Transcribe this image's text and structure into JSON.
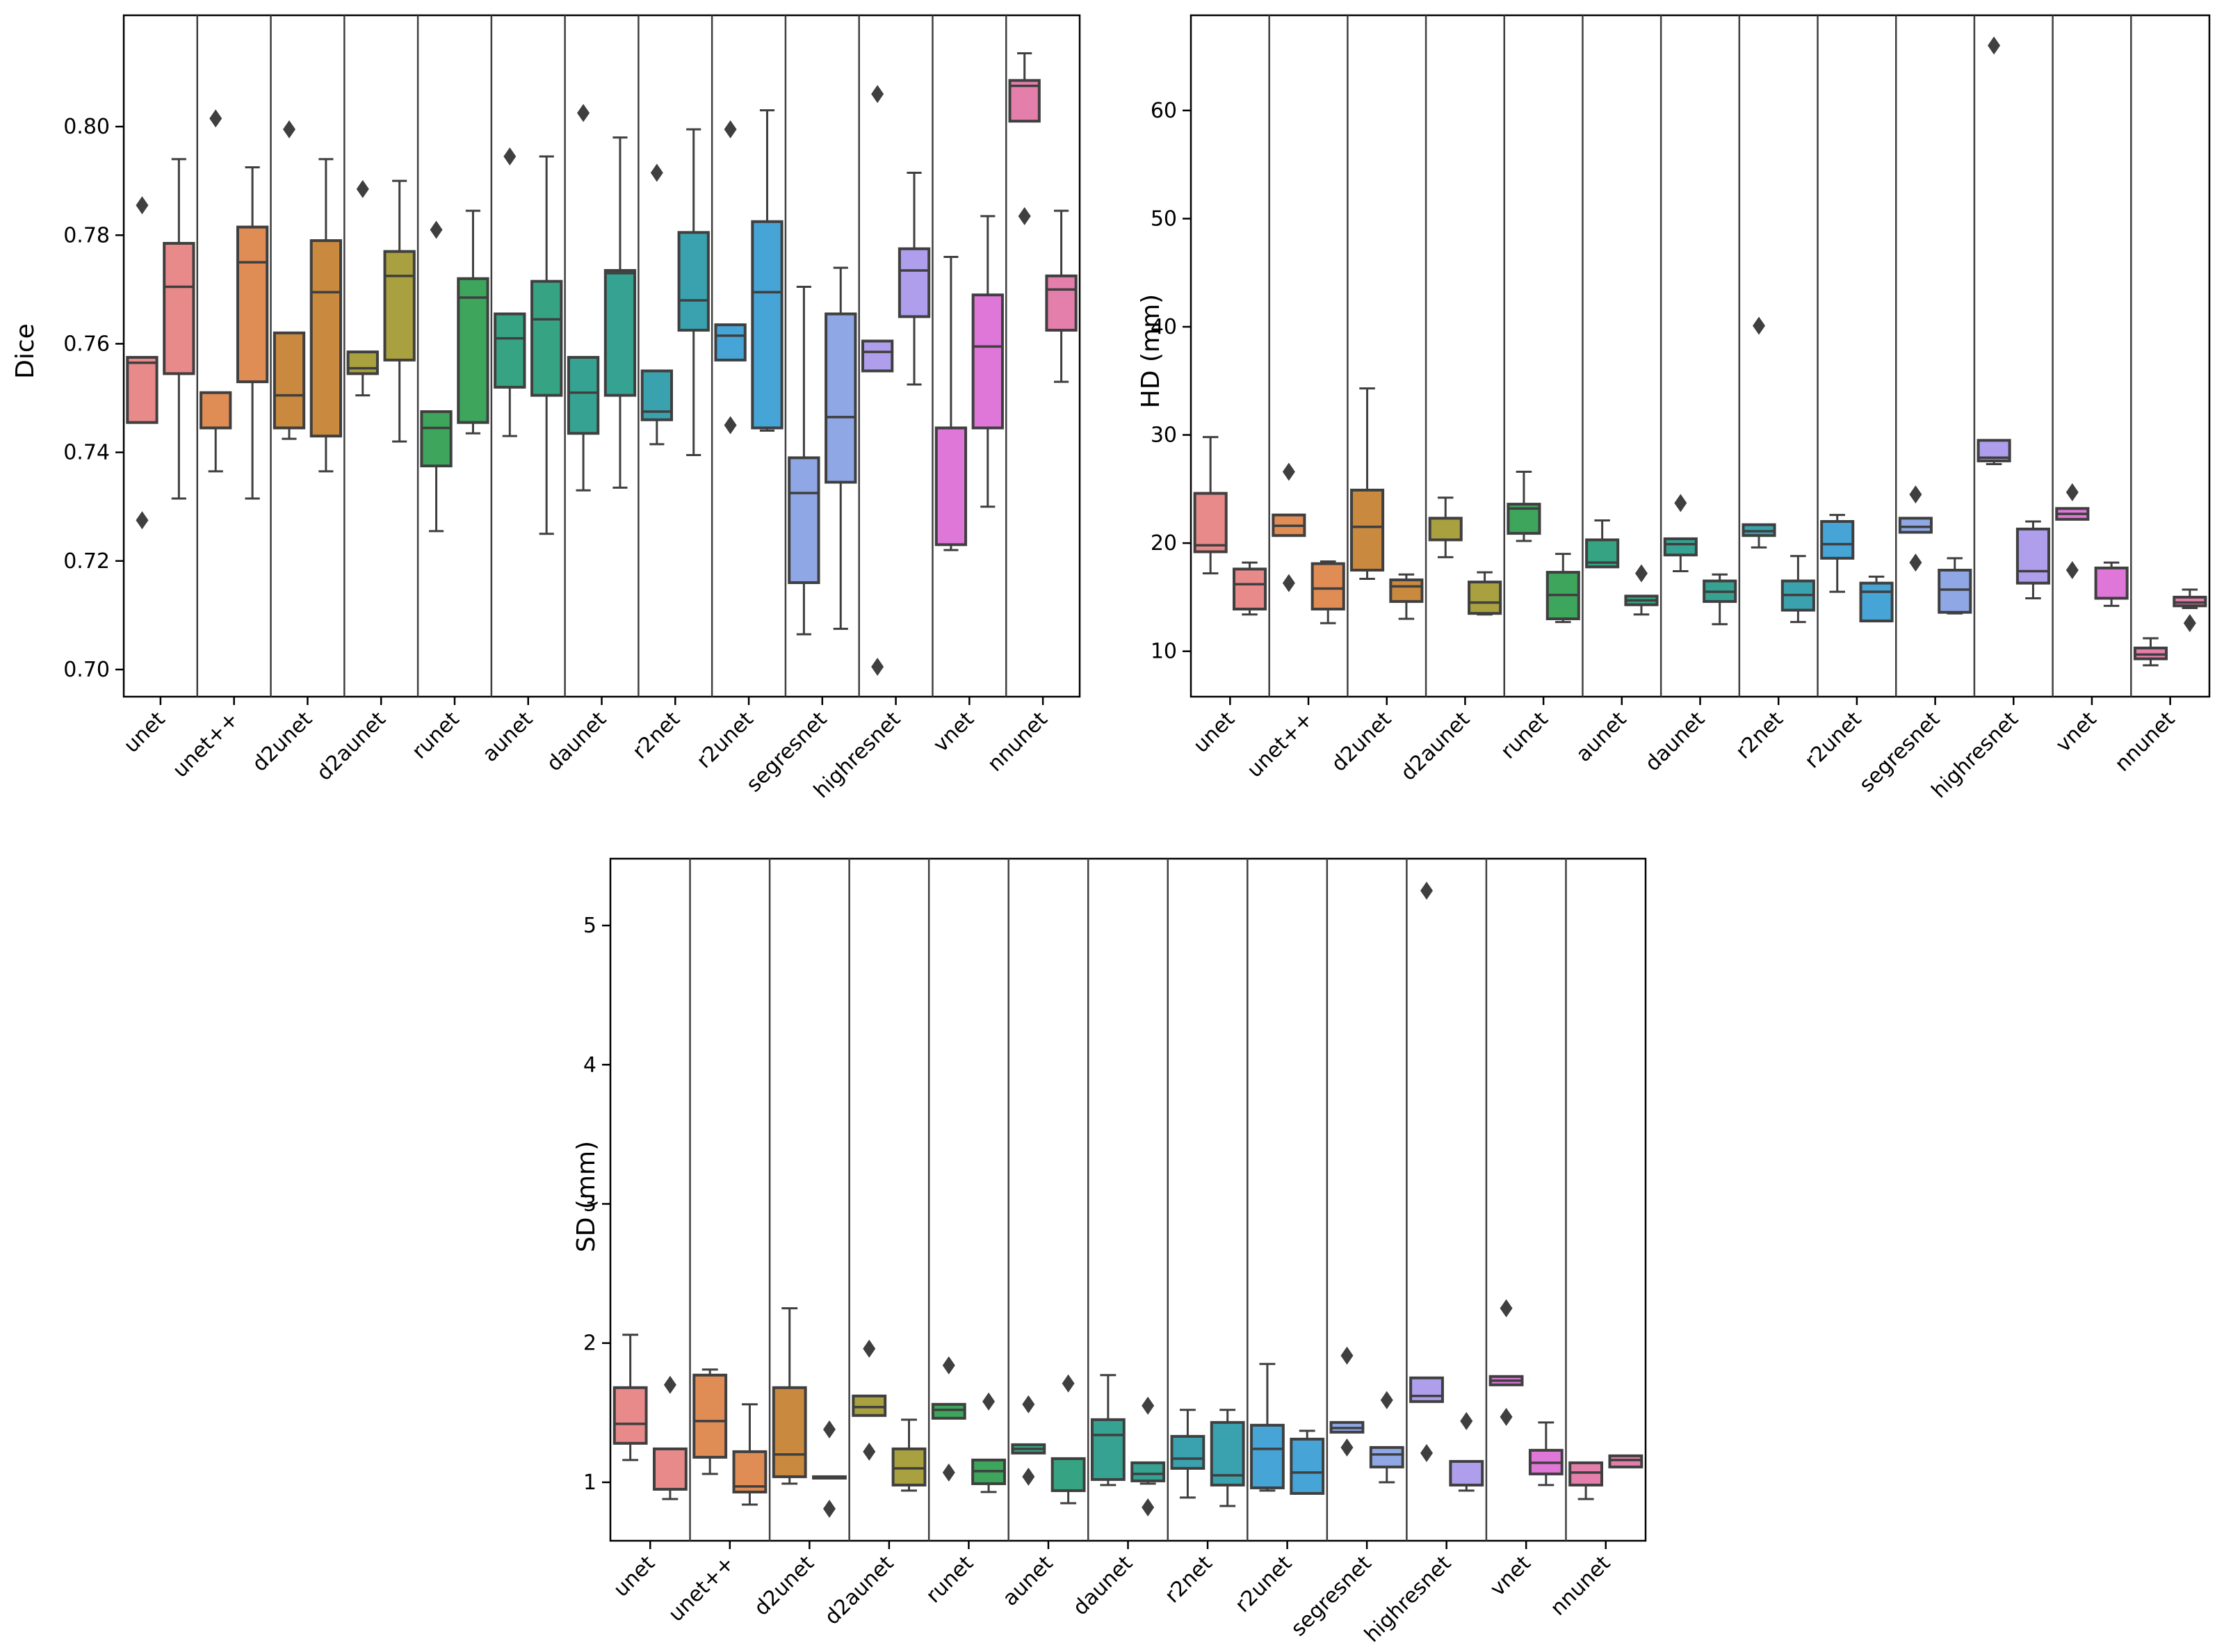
{
  "chart_data": [
    {
      "id": "dice",
      "type": "box",
      "title": "",
      "xlabel": "",
      "ylabel": "Dice",
      "ylim": [
        0.695,
        0.8205
      ],
      "yticks": [
        0.7,
        0.72,
        0.74,
        0.76,
        0.78,
        0.8
      ],
      "ytick_labels": [
        "0.70",
        "0.72",
        "0.74",
        "0.76",
        "0.78",
        "0.80"
      ],
      "categories": [
        "unet",
        "unet++",
        "d2unet",
        "d2aunet",
        "runet",
        "aunet",
        "daunet",
        "r2net",
        "r2unet",
        "segresnet",
        "highresnet",
        "vnet",
        "nnunet"
      ],
      "palette": [
        "#e8898a",
        "#e08c55",
        "#c9893e",
        "#a9a03f",
        "#3da55c",
        "#36a483",
        "#36a392",
        "#3aa2ae",
        "#46a5d6",
        "#8fa8e5",
        "#ae9eeb",
        "#df77d8",
        "#e47fab"
      ],
      "boxes": [
        [
          {
            "min": 0.7455,
            "q1": 0.7455,
            "median": 0.7565,
            "q3": 0.7575,
            "max": 0.7575,
            "fliers": [
              0.7855,
              0.7275
            ]
          },
          {
            "min": 0.7315,
            "q1": 0.7545,
            "median": 0.7705,
            "q3": 0.7785,
            "max": 0.794,
            "fliers": []
          }
        ],
        [
          {
            "min": 0.7365,
            "q1": 0.7445,
            "median": 0.7445,
            "q3": 0.751,
            "max": 0.751,
            "fliers": [
              0.8015
            ]
          },
          {
            "min": 0.7315,
            "q1": 0.753,
            "median": 0.775,
            "q3": 0.7815,
            "max": 0.7925,
            "fliers": []
          }
        ],
        [
          {
            "min": 0.7425,
            "q1": 0.7445,
            "median": 0.7505,
            "q3": 0.762,
            "max": 0.762,
            "fliers": [
              0.7995
            ]
          },
          {
            "min": 0.7365,
            "q1": 0.743,
            "median": 0.7695,
            "q3": 0.779,
            "max": 0.794,
            "fliers": []
          }
        ],
        [
          {
            "min": 0.7505,
            "q1": 0.7545,
            "median": 0.7555,
            "q3": 0.7585,
            "max": 0.7585,
            "fliers": [
              0.7885
            ]
          },
          {
            "min": 0.742,
            "q1": 0.757,
            "median": 0.7725,
            "q3": 0.777,
            "max": 0.79,
            "fliers": []
          }
        ],
        [
          {
            "min": 0.7255,
            "q1": 0.7375,
            "median": 0.7445,
            "q3": 0.7475,
            "max": 0.7475,
            "fliers": [
              0.781
            ]
          },
          {
            "min": 0.7435,
            "q1": 0.7455,
            "median": 0.7685,
            "q3": 0.772,
            "max": 0.7845,
            "fliers": []
          }
        ],
        [
          {
            "min": 0.743,
            "q1": 0.752,
            "median": 0.761,
            "q3": 0.7655,
            "max": 0.7655,
            "fliers": [
              0.7945
            ]
          },
          {
            "min": 0.725,
            "q1": 0.7505,
            "median": 0.7645,
            "q3": 0.7715,
            "max": 0.7945,
            "fliers": []
          }
        ],
        [
          {
            "min": 0.733,
            "q1": 0.7435,
            "median": 0.751,
            "q3": 0.7575,
            "max": 0.7575,
            "fliers": [
              0.8025
            ]
          },
          {
            "min": 0.7335,
            "q1": 0.7505,
            "median": 0.773,
            "q3": 0.7735,
            "max": 0.798,
            "fliers": []
          }
        ],
        [
          {
            "min": 0.7415,
            "q1": 0.746,
            "median": 0.7475,
            "q3": 0.755,
            "max": 0.755,
            "fliers": [
              0.7915
            ]
          },
          {
            "min": 0.7395,
            "q1": 0.7625,
            "median": 0.768,
            "q3": 0.7805,
            "max": 0.7995,
            "fliers": []
          }
        ],
        [
          {
            "min": 0.757,
            "q1": 0.757,
            "median": 0.7615,
            "q3": 0.7635,
            "max": 0.7635,
            "fliers": [
              0.7995,
              0.745
            ]
          },
          {
            "min": 0.744,
            "q1": 0.7445,
            "median": 0.7695,
            "q3": 0.7825,
            "max": 0.803,
            "fliers": []
          }
        ],
        [
          {
            "min": 0.7065,
            "q1": 0.716,
            "median": 0.7325,
            "q3": 0.739,
            "max": 0.7705,
            "fliers": []
          },
          {
            "min": 0.7075,
            "q1": 0.7345,
            "median": 0.7465,
            "q3": 0.7655,
            "max": 0.774,
            "fliers": []
          }
        ],
        [
          {
            "min": 0.755,
            "q1": 0.755,
            "median": 0.7585,
            "q3": 0.7605,
            "max": 0.7605,
            "fliers": [
              0.806,
              0.7005
            ]
          },
          {
            "min": 0.7525,
            "q1": 0.765,
            "median": 0.7735,
            "q3": 0.7775,
            "max": 0.7915,
            "fliers": []
          }
        ],
        [
          {
            "min": 0.722,
            "q1": 0.723,
            "median": 0.7445,
            "q3": 0.7445,
            "max": 0.776,
            "fliers": []
          },
          {
            "min": 0.73,
            "q1": 0.7445,
            "median": 0.7595,
            "q3": 0.769,
            "max": 0.7835,
            "fliers": []
          }
        ],
        [
          {
            "min": 0.801,
            "q1": 0.801,
            "median": 0.8075,
            "q3": 0.8085,
            "max": 0.8135,
            "fliers": [
              0.7835
            ]
          },
          {
            "min": 0.753,
            "q1": 0.7625,
            "median": 0.77,
            "q3": 0.7725,
            "max": 0.7845,
            "fliers": []
          }
        ]
      ]
    },
    {
      "id": "hd",
      "type": "box",
      "title": "",
      "xlabel": "",
      "ylabel": "HD (mm)",
      "ylim": [
        5.8,
        68.8
      ],
      "yticks": [
        10,
        20,
        30,
        40,
        50,
        60
      ],
      "ytick_labels": [
        "10",
        "20",
        "30",
        "40",
        "50",
        "60"
      ],
      "categories": [
        "unet",
        "unet++",
        "d2unet",
        "d2aunet",
        "runet",
        "aunet",
        "daunet",
        "r2net",
        "r2unet",
        "segresnet",
        "highresnet",
        "vnet",
        "nnunet"
      ],
      "palette": [
        "#e8898a",
        "#e08c55",
        "#c9893e",
        "#a9a03f",
        "#3da55c",
        "#36a483",
        "#36a392",
        "#3aa2ae",
        "#46a5d6",
        "#8fa8e5",
        "#ae9eeb",
        "#df77d8",
        "#e47fab"
      ],
      "boxes": [
        [
          {
            "min": 17.2,
            "q1": 19.2,
            "median": 19.8,
            "q3": 24.6,
            "max": 29.8,
            "fliers": []
          },
          {
            "min": 13.4,
            "q1": 13.9,
            "median": 16.2,
            "q3": 17.6,
            "max": 18.2,
            "fliers": []
          }
        ],
        [
          {
            "min": 20.7,
            "q1": 20.7,
            "median": 21.6,
            "q3": 22.6,
            "max": 22.6,
            "fliers": [
              26.6,
              16.3
            ]
          },
          {
            "min": 12.6,
            "q1": 13.9,
            "median": 15.8,
            "q3": 18.1,
            "max": 18.3,
            "fliers": []
          }
        ],
        [
          {
            "min": 16.7,
            "q1": 17.5,
            "median": 21.5,
            "q3": 24.9,
            "max": 34.3,
            "fliers": []
          },
          {
            "min": 13.0,
            "q1": 14.6,
            "median": 16.0,
            "q3": 16.6,
            "max": 17.1,
            "fliers": []
          }
        ],
        [
          {
            "min": 18.7,
            "q1": 20.3,
            "median": 22.3,
            "q3": 22.3,
            "max": 24.2,
            "fliers": []
          },
          {
            "min": 13.4,
            "q1": 13.5,
            "median": 14.5,
            "q3": 16.4,
            "max": 17.3,
            "fliers": []
          }
        ],
        [
          {
            "min": 20.2,
            "q1": 20.9,
            "median": 23.2,
            "q3": 23.6,
            "max": 26.6,
            "fliers": []
          },
          {
            "min": 12.7,
            "q1": 13.0,
            "median": 15.2,
            "q3": 17.3,
            "max": 19.0,
            "fliers": []
          }
        ],
        [
          {
            "min": 17.8,
            "q1": 17.8,
            "median": 18.2,
            "q3": 20.3,
            "max": 22.1,
            "fliers": []
          },
          {
            "min": 13.4,
            "q1": 14.3,
            "median": 14.7,
            "q3": 15.1,
            "max": 15.1,
            "fliers": [
              17.2
            ]
          }
        ],
        [
          {
            "min": 17.4,
            "q1": 18.9,
            "median": 19.9,
            "q3": 20.4,
            "max": 20.4,
            "fliers": [
              23.7
            ]
          },
          {
            "min": 12.5,
            "q1": 14.6,
            "median": 15.5,
            "q3": 16.5,
            "max": 17.1,
            "fliers": []
          }
        ],
        [
          {
            "min": 19.6,
            "q1": 20.7,
            "median": 21.1,
            "q3": 21.7,
            "max": 21.7,
            "fliers": [
              40.1
            ]
          },
          {
            "min": 12.7,
            "q1": 13.8,
            "median": 15.2,
            "q3": 16.5,
            "max": 18.8,
            "fliers": []
          }
        ],
        [
          {
            "min": 15.5,
            "q1": 18.6,
            "median": 19.9,
            "q3": 22.0,
            "max": 22.6,
            "fliers": []
          },
          {
            "min": 12.8,
            "q1": 12.8,
            "median": 15.5,
            "q3": 16.3,
            "max": 16.9,
            "fliers": []
          }
        ],
        [
          {
            "min": 21.0,
            "q1": 21.0,
            "median": 21.5,
            "q3": 22.3,
            "max": 22.3,
            "fliers": [
              24.5,
              18.2
            ]
          },
          {
            "min": 13.5,
            "q1": 13.6,
            "median": 15.7,
            "q3": 17.5,
            "max": 18.6,
            "fliers": []
          }
        ],
        [
          {
            "min": 27.3,
            "q1": 27.6,
            "median": 27.9,
            "q3": 29.5,
            "max": 29.5,
            "fliers": [
              66.0
            ]
          },
          {
            "min": 14.9,
            "q1": 16.3,
            "median": 17.4,
            "q3": 21.3,
            "max": 22.0,
            "fliers": []
          }
        ],
        [
          {
            "min": 22.2,
            "q1": 22.2,
            "median": 22.7,
            "q3": 23.2,
            "max": 23.2,
            "fliers": [
              24.7,
              17.5
            ]
          },
          {
            "min": 14.2,
            "q1": 14.9,
            "median": 14.9,
            "q3": 17.7,
            "max": 18.2,
            "fliers": []
          }
        ],
        [
          {
            "min": 8.7,
            "q1": 9.3,
            "median": 9.7,
            "q3": 10.3,
            "max": 11.2,
            "fliers": []
          },
          {
            "min": 14.0,
            "q1": 14.2,
            "median": 14.5,
            "q3": 15.0,
            "max": 15.7,
            "fliers": [
              12.6
            ]
          }
        ]
      ]
    },
    {
      "id": "sd",
      "type": "box",
      "title": "",
      "xlabel": "",
      "ylabel": "SD (mm)",
      "ylim": [
        0.58,
        5.48
      ],
      "yticks": [
        1,
        2,
        3,
        4,
        5
      ],
      "ytick_labels": [
        "1",
        "2",
        "3",
        "4",
        "5"
      ],
      "categories": [
        "unet",
        "unet++",
        "d2unet",
        "d2aunet",
        "runet",
        "aunet",
        "daunet",
        "r2net",
        "r2unet",
        "segresnet",
        "highresnet",
        "vnet",
        "nnunet"
      ],
      "palette": [
        "#e8898a",
        "#e08c55",
        "#c9893e",
        "#a9a03f",
        "#3da55c",
        "#36a483",
        "#36a392",
        "#3aa2ae",
        "#46a5d6",
        "#8fa8e5",
        "#ae9eeb",
        "#df77d8",
        "#e47fab"
      ],
      "boxes": [
        [
          {
            "min": 1.16,
            "q1": 1.28,
            "median": 1.42,
            "q3": 1.68,
            "max": 2.06,
            "fliers": []
          },
          {
            "min": 0.88,
            "q1": 0.95,
            "median": 0.95,
            "q3": 1.24,
            "max": 1.24,
            "fliers": [
              1.7
            ]
          }
        ],
        [
          {
            "min": 1.06,
            "q1": 1.18,
            "median": 1.44,
            "q3": 1.77,
            "max": 1.81,
            "fliers": []
          },
          {
            "min": 0.84,
            "q1": 0.93,
            "median": 0.97,
            "q3": 1.22,
            "max": 1.56,
            "fliers": []
          }
        ],
        [
          {
            "min": 0.99,
            "q1": 1.04,
            "median": 1.2,
            "q3": 1.68,
            "max": 2.25,
            "fliers": []
          },
          {
            "min": 1.03,
            "q1": 1.03,
            "median": 1.03,
            "q3": 1.04,
            "max": 1.04,
            "fliers": [
              1.38,
              0.81
            ]
          }
        ],
        [
          {
            "min": 1.48,
            "q1": 1.48,
            "median": 1.54,
            "q3": 1.62,
            "max": 1.62,
            "fliers": [
              1.96,
              1.22
            ]
          },
          {
            "min": 0.94,
            "q1": 0.98,
            "median": 1.1,
            "q3": 1.24,
            "max": 1.45,
            "fliers": []
          }
        ],
        [
          {
            "min": 1.46,
            "q1": 1.46,
            "median": 1.52,
            "q3": 1.56,
            "max": 1.56,
            "fliers": [
              1.84,
              1.07
            ]
          },
          {
            "min": 0.93,
            "q1": 0.99,
            "median": 1.08,
            "q3": 1.16,
            "max": 1.16,
            "fliers": [
              1.58
            ]
          }
        ],
        [
          {
            "min": 1.21,
            "q1": 1.21,
            "median": 1.24,
            "q3": 1.27,
            "max": 1.27,
            "fliers": [
              1.56,
              1.04
            ]
          },
          {
            "min": 0.85,
            "q1": 0.94,
            "median": 0.94,
            "q3": 1.17,
            "max": 1.17,
            "fliers": [
              1.71
            ]
          }
        ],
        [
          {
            "min": 0.98,
            "q1": 1.02,
            "median": 1.34,
            "q3": 1.45,
            "max": 1.77,
            "fliers": []
          },
          {
            "min": 0.99,
            "q1": 1.01,
            "median": 1.06,
            "q3": 1.14,
            "max": 1.14,
            "fliers": [
              1.55,
              0.82
            ]
          }
        ],
        [
          {
            "min": 0.89,
            "q1": 1.1,
            "median": 1.17,
            "q3": 1.33,
            "max": 1.52,
            "fliers": []
          },
          {
            "min": 0.83,
            "q1": 0.98,
            "median": 1.05,
            "q3": 1.43,
            "max": 1.52,
            "fliers": []
          }
        ],
        [
          {
            "min": 0.94,
            "q1": 0.96,
            "median": 1.24,
            "q3": 1.41,
            "max": 1.85,
            "fliers": []
          },
          {
            "min": 0.92,
            "q1": 0.92,
            "median": 1.07,
            "q3": 1.31,
            "max": 1.37,
            "fliers": []
          }
        ],
        [
          {
            "min": 1.36,
            "q1": 1.36,
            "median": 1.39,
            "q3": 1.43,
            "max": 1.43,
            "fliers": [
              1.91,
              1.25
            ]
          },
          {
            "min": 1.0,
            "q1": 1.11,
            "median": 1.2,
            "q3": 1.25,
            "max": 1.25,
            "fliers": [
              1.59
            ]
          }
        ],
        [
          {
            "min": 1.58,
            "q1": 1.58,
            "median": 1.62,
            "q3": 1.75,
            "max": 1.75,
            "fliers": [
              5.25,
              1.21
            ]
          },
          {
            "min": 0.94,
            "q1": 0.98,
            "median": 0.98,
            "q3": 1.15,
            "max": 1.15,
            "fliers": [
              1.44
            ]
          }
        ],
        [
          {
            "min": 1.7,
            "q1": 1.7,
            "median": 1.73,
            "q3": 1.76,
            "max": 1.76,
            "fliers": [
              2.25,
              1.47
            ]
          },
          {
            "min": 0.98,
            "q1": 1.06,
            "median": 1.14,
            "q3": 1.23,
            "max": 1.43,
            "fliers": []
          }
        ],
        [
          {
            "min": 0.88,
            "q1": 0.98,
            "median": 1.07,
            "q3": 1.14,
            "max": 1.14,
            "fliers": []
          },
          {
            "min": 1.11,
            "q1": 1.11,
            "median": 1.16,
            "q3": 1.19,
            "max": 1.19,
            "fliers": []
          }
        ]
      ]
    }
  ]
}
